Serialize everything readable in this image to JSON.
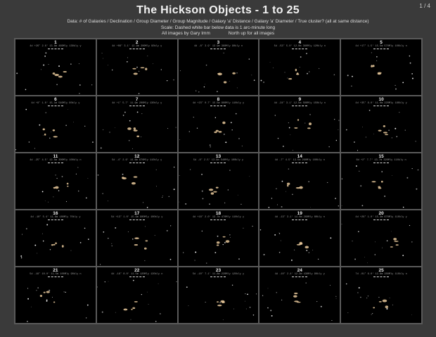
{
  "page_counter": "1 / 4",
  "title": "The Hickson Objects   -   1 to 25",
  "data_line": "Data:   # of Galaxies / Declination / Group Diameter / Group Magnitude / Galaxy 'a' Distance / Galaxy 'a' Diameter / True cluster? (all at same distance)",
  "scale_line": "Scale: Dashed white bar below data is 1 arc-minute long",
  "credit": "All images by Gary Imm",
  "orientation": "North up for all images",
  "colors": {
    "background": "#3a3a3a",
    "cell": "#000000",
    "galaxy": "#e8c89a"
  },
  "panels": [
    {
      "number": "1",
      "info": "4d +26° 2.6' 13.8m 460Mly 130kly y"
    },
    {
      "number": "2",
      "info": "4d +08° 3.1' 12.9m 200Mly 90kly y"
    },
    {
      "number": "3",
      "info": "4d -8° 3.9' 13.9m 360Mly 90kly n"
    },
    {
      "number": "4",
      "info": "5d -53° 5.0' 12.0m 360Mly 120kly n"
    },
    {
      "number": "5",
      "info": "4d +17° 1.5' 15.5m 570Mly 100kly n"
    },
    {
      "number": "6",
      "info": "4d +8° 1.0' 15.1m 540Mly 60kly y"
    },
    {
      "number": "7",
      "info": "4d +1° 5.7' 11.9m 200Mly 130kly y"
    },
    {
      "number": "8",
      "info": "4d +23° 0.7' 15.5m 800Mly 110kly y"
    },
    {
      "number": "9",
      "info": "4d -24° 3.1' 12.5m 500Mly 150kly n"
    },
    {
      "number": "10",
      "info": "4d +35° 8.0' 11.0m 220Mly 180kly y"
    },
    {
      "number": "11",
      "info": "4d -25° 4.5' 12.5m 300Mly 100kly n"
    },
    {
      "number": "12",
      "info": "5d -4° 2.6' 14.6m 670Mly 110kly y"
    },
    {
      "number": "13",
      "info": "5d -8° 2.5' 13.9m 540Mly 100kly y"
    },
    {
      "number": "14",
      "info": "4d -7° 4.5' 13.5m 260Mly 100kly n"
    },
    {
      "number": "15",
      "info": "6d +2° 7.7' 13.7m 320Mly 110kly n"
    },
    {
      "number": "16",
      "info": "4d -10° 5.4' 11.6m 180Mly 70kly y"
    },
    {
      "number": "17",
      "info": "5d +13° 1.0' 15.9m 900Mly 100kly y"
    },
    {
      "number": "18",
      "info": "4d +18° 2.0' 13.7m 470Mly 110kly y"
    },
    {
      "number": "19",
      "info": "4d -13° 3.1' 14.0m 260Mly 80kly n"
    },
    {
      "number": "20",
      "info": "4d +26° 1.0' 15.3m 670Mly 110kly y"
    },
    {
      "number": "21",
      "info": "5d -18° 10.0' 11.5m 100Mly 90kly n"
    },
    {
      "number": "22",
      "info": "4d -16° 8.0' 11.5m 120Mly 120kly n"
    },
    {
      "number": "23",
      "info": "5d -10° 7.1' 11.8m 220Mly 120kly y"
    },
    {
      "number": "24",
      "info": "4d -10° 2.4' 12.3m 430Mly 90kly y"
    },
    {
      "number": "25",
      "info": "7d -01° 6.0' 12.8m 280Mly 110kly n"
    }
  ]
}
